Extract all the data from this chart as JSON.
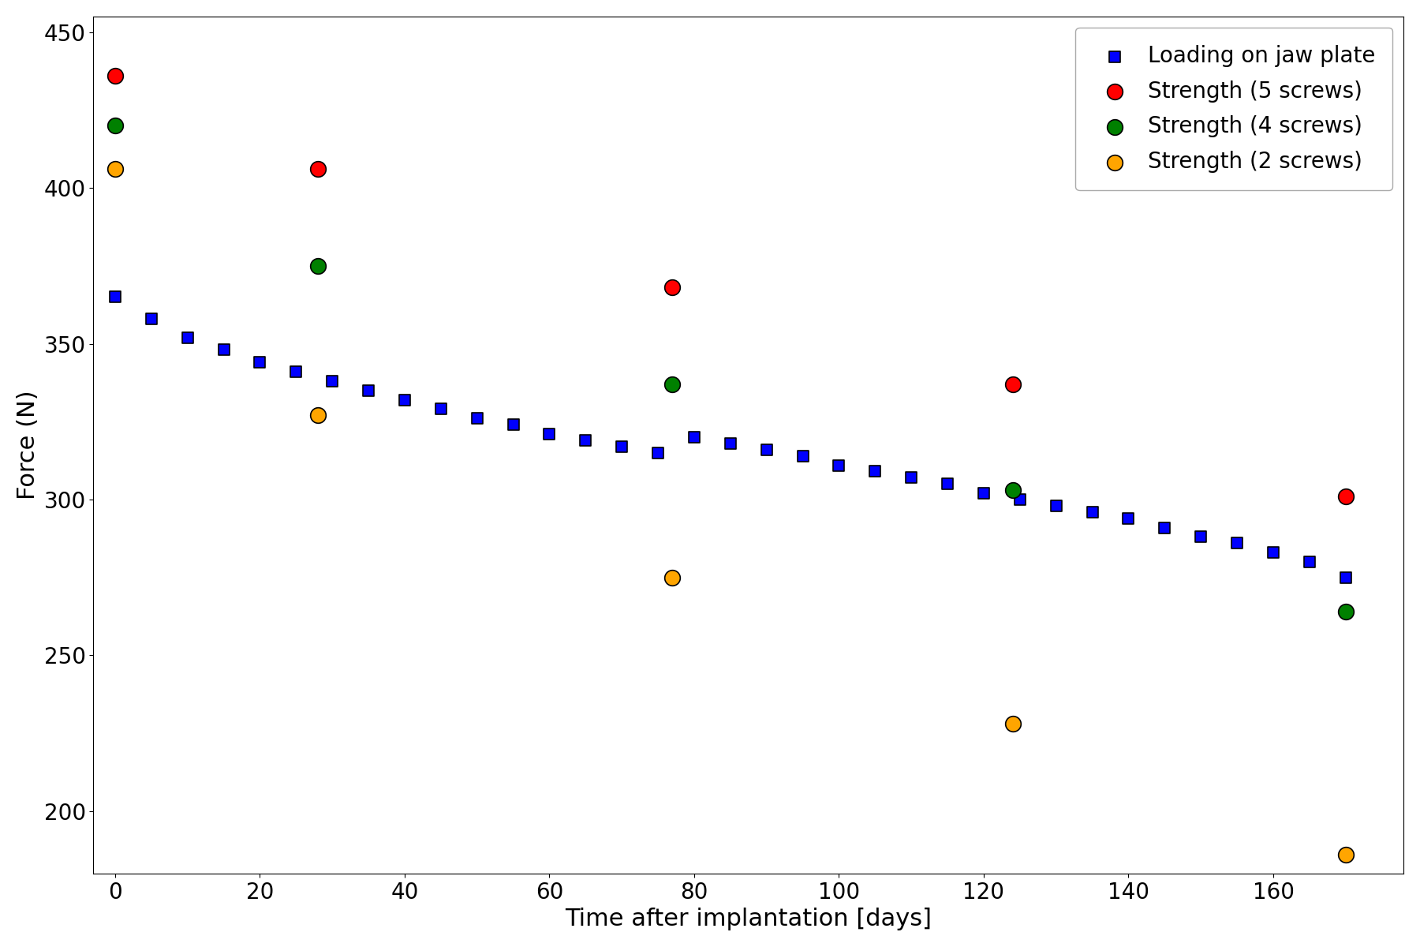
{
  "loading_x": [
    0,
    5,
    10,
    15,
    20,
    25,
    30,
    35,
    40,
    45,
    50,
    55,
    60,
    65,
    70,
    75,
    80,
    85,
    90,
    95,
    100,
    105,
    110,
    115,
    120,
    125,
    130,
    135,
    140,
    145,
    150,
    155,
    160,
    165,
    170
  ],
  "loading_y": [
    365,
    358,
    352,
    348,
    344,
    341,
    338,
    335,
    332,
    329,
    326,
    324,
    321,
    319,
    317,
    315,
    320,
    318,
    316,
    314,
    311,
    309,
    307,
    305,
    302,
    300,
    298,
    296,
    294,
    291,
    288,
    286,
    283,
    280,
    275
  ],
  "strength_5_x": [
    0,
    28,
    77,
    124,
    170
  ],
  "strength_5_y": [
    436,
    406,
    368,
    337,
    301
  ],
  "strength_4_x": [
    0,
    28,
    77,
    124,
    170
  ],
  "strength_4_y": [
    420,
    375,
    337,
    303,
    264
  ],
  "strength_2_x": [
    0,
    28,
    77,
    124,
    170
  ],
  "strength_2_y": [
    406,
    327,
    275,
    228,
    186
  ],
  "xlabel": "Time after implantation [days]",
  "ylabel": "Force (N)",
  "ylim": [
    180,
    455
  ],
  "xlim": [
    -3,
    178
  ],
  "xticks": [
    0,
    20,
    40,
    60,
    80,
    100,
    120,
    140,
    160
  ],
  "yticks": [
    200,
    250,
    300,
    350,
    400,
    450
  ],
  "loading_color": "blue",
  "loading_marker": "s",
  "loading_label": "Loading on jaw plate",
  "strength_5_color": "red",
  "strength_5_label": "Strength (5 screws)",
  "strength_4_color": "green",
  "strength_4_label": "Strength (4 screws)",
  "strength_2_color": "orange",
  "strength_2_label": "Strength (2 screws)",
  "circle_marker": "o",
  "marker_size_loading": 100,
  "marker_size_strength": 200,
  "legend_fontsize": 20,
  "axis_label_fontsize": 22,
  "tick_fontsize": 20
}
